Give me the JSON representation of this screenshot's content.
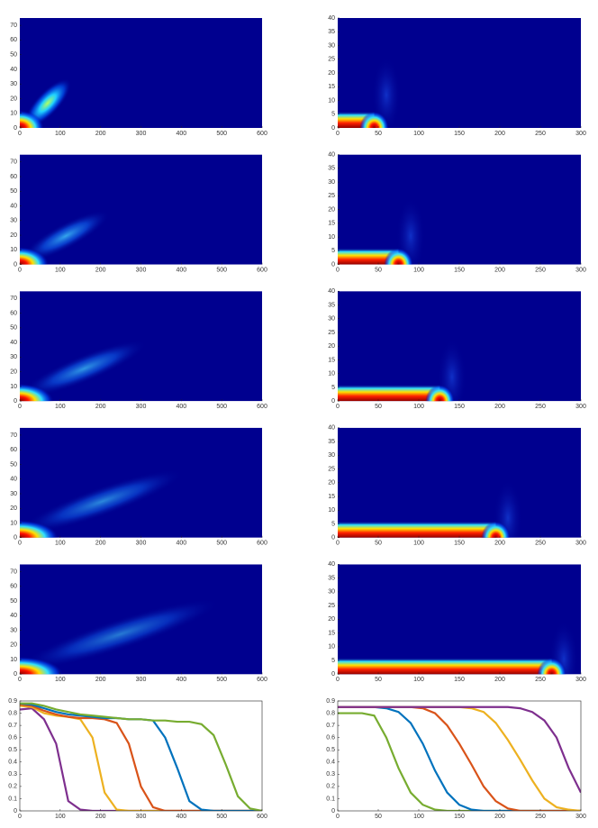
{
  "chart_data": [
    {
      "type": "heatmap",
      "xlim": [
        0,
        600
      ],
      "ylim": [
        0,
        75
      ],
      "xticks": [
        0,
        100,
        200,
        300,
        400,
        500,
        600
      ],
      "yticks": [
        0,
        10,
        20,
        30,
        40,
        50,
        60,
        70
      ]
    },
    {
      "type": "heatmap",
      "xlim": [
        0,
        300
      ],
      "ylim": [
        0,
        40
      ],
      "xticks": [
        0,
        50,
        100,
        150,
        200,
        250,
        300
      ],
      "yticks": [
        0,
        5,
        10,
        15,
        20,
        25,
        30,
        35,
        40
      ]
    },
    {
      "type": "heatmap",
      "xlim": [
        0,
        600
      ],
      "ylim": [
        0,
        75
      ],
      "xticks": [
        0,
        100,
        200,
        300,
        400,
        500,
        600
      ],
      "yticks": [
        0,
        10,
        20,
        30,
        40,
        50,
        60,
        70
      ]
    },
    {
      "type": "heatmap",
      "xlim": [
        0,
        300
      ],
      "ylim": [
        0,
        40
      ],
      "xticks": [
        0,
        50,
        100,
        150,
        200,
        250,
        300
      ],
      "yticks": [
        0,
        5,
        10,
        15,
        20,
        25,
        30,
        35,
        40
      ]
    },
    {
      "type": "heatmap",
      "xlim": [
        0,
        600
      ],
      "ylim": [
        0,
        75
      ],
      "xticks": [
        0,
        100,
        200,
        300,
        400,
        500,
        600
      ],
      "yticks": [
        0,
        10,
        20,
        30,
        40,
        50,
        60,
        70
      ]
    },
    {
      "type": "heatmap",
      "xlim": [
        0,
        300
      ],
      "ylim": [
        0,
        40
      ],
      "xticks": [
        0,
        50,
        100,
        150,
        200,
        250,
        300
      ],
      "yticks": [
        0,
        5,
        10,
        15,
        20,
        25,
        30,
        35,
        40
      ]
    },
    {
      "type": "heatmap",
      "xlim": [
        0,
        600
      ],
      "ylim": [
        0,
        75
      ],
      "xticks": [
        0,
        100,
        200,
        300,
        400,
        500,
        600
      ],
      "yticks": [
        0,
        10,
        20,
        30,
        40,
        50,
        60,
        70
      ]
    },
    {
      "type": "heatmap",
      "xlim": [
        0,
        300
      ],
      "ylim": [
        0,
        40
      ],
      "xticks": [
        0,
        50,
        100,
        150,
        200,
        250,
        300
      ],
      "yticks": [
        0,
        5,
        10,
        15,
        20,
        25,
        30,
        35,
        40
      ]
    },
    {
      "type": "heatmap",
      "xlim": [
        0,
        600
      ],
      "ylim": [
        0,
        75
      ],
      "xticks": [
        0,
        100,
        200,
        300,
        400,
        500,
        600
      ],
      "yticks": [
        0,
        10,
        20,
        30,
        40,
        50,
        60,
        70
      ]
    },
    {
      "type": "heatmap",
      "xlim": [
        0,
        300
      ],
      "ylim": [
        0,
        40
      ],
      "xticks": [
        0,
        50,
        100,
        150,
        200,
        250,
        300
      ],
      "yticks": [
        0,
        5,
        10,
        15,
        20,
        25,
        30,
        35,
        40
      ]
    },
    {
      "type": "line",
      "xlim": [
        0,
        600
      ],
      "ylim": [
        0,
        0.9
      ],
      "xticks": [
        0,
        100,
        200,
        300,
        400,
        500,
        600
      ],
      "yticks": [
        0,
        0.1,
        0.2,
        0.3,
        0.4,
        0.5,
        0.6,
        0.7,
        0.8,
        0.9
      ],
      "x": [
        0,
        30,
        60,
        90,
        120,
        150,
        180,
        210,
        240,
        270,
        300,
        330,
        360,
        390,
        420,
        450,
        480,
        510,
        540,
        570,
        600
      ],
      "series": [
        {
          "color": "#7e2f8e",
          "values": [
            0.83,
            0.84,
            0.75,
            0.55,
            0.08,
            0.01,
            0,
            0,
            0,
            0,
            0,
            0,
            0,
            0,
            0,
            0,
            0,
            0,
            0,
            0,
            0
          ]
        },
        {
          "color": "#edb120",
          "values": [
            0.86,
            0.85,
            0.8,
            0.78,
            0.77,
            0.75,
            0.6,
            0.15,
            0.01,
            0,
            0,
            0,
            0,
            0,
            0,
            0,
            0,
            0,
            0,
            0,
            0
          ]
        },
        {
          "color": "#d95319",
          "values": [
            0.87,
            0.86,
            0.82,
            0.79,
            0.77,
            0.76,
            0.76,
            0.75,
            0.72,
            0.55,
            0.2,
            0.03,
            0,
            0,
            0,
            0,
            0,
            0,
            0,
            0,
            0
          ]
        },
        {
          "color": "#0072bd",
          "values": [
            0.88,
            0.87,
            0.84,
            0.81,
            0.79,
            0.78,
            0.77,
            0.76,
            0.76,
            0.75,
            0.75,
            0.74,
            0.6,
            0.35,
            0.08,
            0.01,
            0,
            0,
            0,
            0,
            0
          ]
        },
        {
          "color": "#77ac30",
          "values": [
            0.88,
            0.88,
            0.86,
            0.83,
            0.81,
            0.79,
            0.78,
            0.77,
            0.76,
            0.75,
            0.75,
            0.74,
            0.74,
            0.73,
            0.73,
            0.71,
            0.62,
            0.38,
            0.12,
            0.02,
            0
          ]
        }
      ]
    },
    {
      "type": "line",
      "xlim": [
        0,
        300
      ],
      "ylim": [
        0,
        0.9
      ],
      "xticks": [
        0,
        50,
        100,
        150,
        200,
        250,
        300
      ],
      "yticks": [
        0,
        0.1,
        0.2,
        0.3,
        0.4,
        0.5,
        0.6,
        0.7,
        0.8,
        0.9
      ],
      "x": [
        0,
        15,
        30,
        45,
        60,
        75,
        90,
        105,
        120,
        135,
        150,
        165,
        180,
        195,
        210,
        225,
        240,
        255,
        270,
        285,
        300
      ],
      "series": [
        {
          "color": "#77ac30",
          "values": [
            0.8,
            0.8,
            0.8,
            0.78,
            0.6,
            0.35,
            0.15,
            0.05,
            0.01,
            0,
            0,
            0,
            0,
            0,
            0,
            0,
            0,
            0,
            0,
            0,
            0
          ]
        },
        {
          "color": "#0072bd",
          "values": [
            0.85,
            0.85,
            0.85,
            0.85,
            0.84,
            0.81,
            0.72,
            0.55,
            0.33,
            0.15,
            0.05,
            0.01,
            0,
            0,
            0,
            0,
            0,
            0,
            0,
            0,
            0
          ]
        },
        {
          "color": "#d95319",
          "values": [
            0.85,
            0.85,
            0.85,
            0.85,
            0.85,
            0.85,
            0.85,
            0.84,
            0.8,
            0.7,
            0.55,
            0.38,
            0.2,
            0.08,
            0.02,
            0,
            0,
            0,
            0,
            0,
            0
          ]
        },
        {
          "color": "#edb120",
          "values": [
            0.85,
            0.85,
            0.85,
            0.85,
            0.85,
            0.85,
            0.85,
            0.85,
            0.85,
            0.85,
            0.85,
            0.84,
            0.81,
            0.72,
            0.58,
            0.42,
            0.25,
            0.1,
            0.03,
            0.01,
            0
          ]
        },
        {
          "color": "#7e2f8e",
          "values": [
            0.85,
            0.85,
            0.85,
            0.85,
            0.85,
            0.85,
            0.85,
            0.85,
            0.85,
            0.85,
            0.85,
            0.85,
            0.85,
            0.85,
            0.85,
            0.84,
            0.81,
            0.74,
            0.6,
            0.35,
            0.15
          ]
        }
      ]
    }
  ]
}
